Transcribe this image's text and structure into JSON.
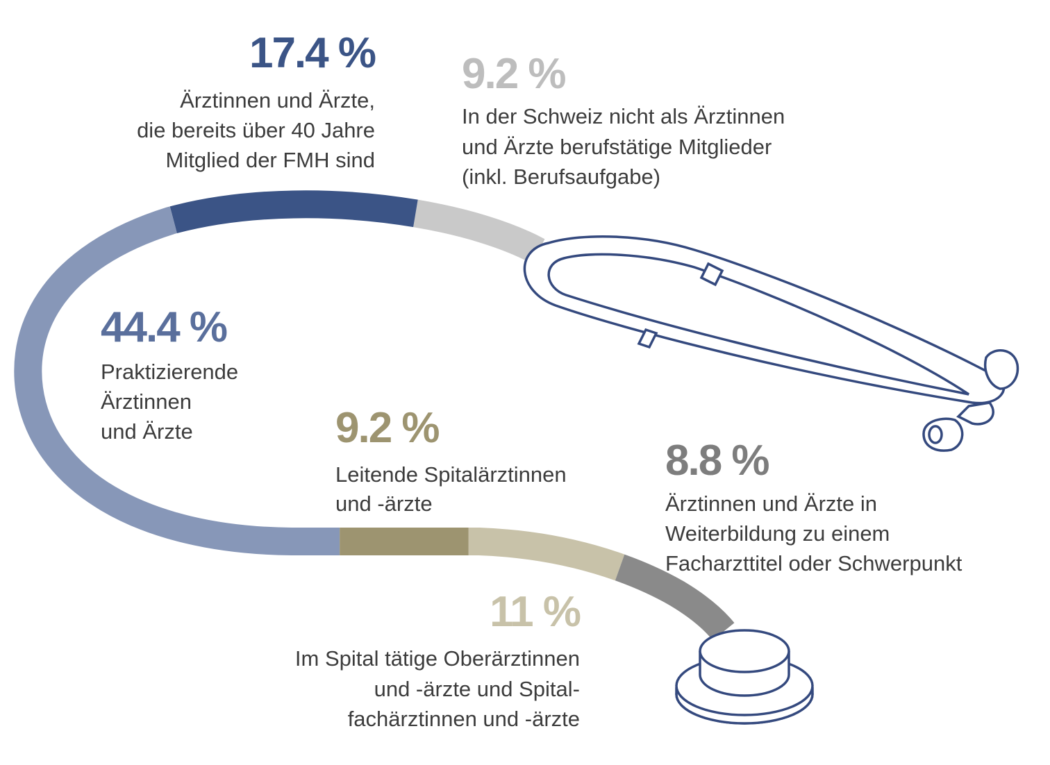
{
  "chart_data": {
    "type": "tube",
    "values": [
      9.2,
      17.4,
      44.4,
      9.2,
      11,
      8.8
    ],
    "value_labels": [
      "9.2 %",
      "17.4 %",
      "44.4 %",
      "9.2 %",
      "11 %",
      "8.8 %"
    ],
    "colors": [
      "#c9c9c9",
      "#3b5486",
      "#8797b8",
      "#9d9470",
      "#c8c2a9",
      "#8a8a8a"
    ],
    "label_colors": [
      "#bdbdbd",
      "#3b5486",
      "#5a6f9c",
      "#9d9470",
      "#c8c2a9",
      "#7d7d7d"
    ],
    "descriptions": [
      [
        "In der Schweiz nicht als Ärztinnen",
        "und Ärzte berufstätige Mitglieder",
        "(inkl. Berufsaufgabe)"
      ],
      [
        "Ärztinnen und Ärzte,",
        "die bereits über 40 Jahre",
        "Mitglied der FMH sind"
      ],
      [
        "Praktizierende",
        "Ärztinnen",
        "und Ärzte"
      ],
      [
        "Leitende Spitalärztinnen",
        "und -ärzte"
      ],
      [
        "Im Spital tätige Oberärztinnen",
        "und -ärzte und Spital-",
        "fachärztinnen und -ärzte"
      ],
      [
        "Ärztinnen und Ärzte in",
        "Weiterbildung zu einem",
        "Facharzttitel oder Schwerpunkt"
      ]
    ]
  }
}
